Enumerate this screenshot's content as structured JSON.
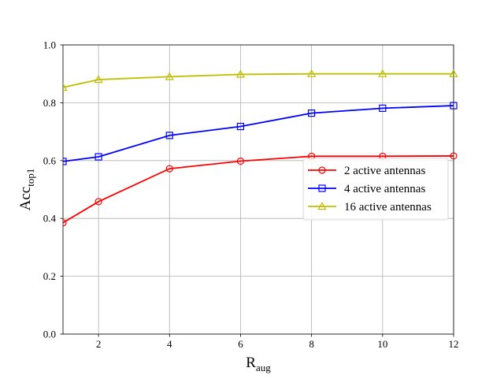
{
  "chart_data": {
    "type": "line",
    "title": "",
    "xlabel": "R",
    "xlabel_sub": "aug",
    "ylabel": "Acc",
    "ylabel_sub": "top1",
    "xlim": [
      1,
      12
    ],
    "ylim": [
      0,
      1.0
    ],
    "xticks": [
      2,
      4,
      6,
      8,
      10,
      12
    ],
    "xtick_labels": [
      "2",
      "4",
      "6",
      "8",
      "10",
      "12"
    ],
    "yticks": [
      0,
      0.2,
      0.4,
      0.6,
      0.8,
      1.0
    ],
    "ytick_labels": [
      "0.0",
      "0.2",
      "0.4",
      "0.6",
      "0.8",
      "1.0"
    ],
    "grid": true,
    "legend_position": "center-right",
    "x": [
      1,
      2,
      4,
      6,
      8,
      10,
      12
    ],
    "series": [
      {
        "name": "2 active antennas",
        "color": "#ff0000",
        "marker": "circle",
        "values": [
          0.385,
          0.458,
          0.572,
          0.598,
          0.615,
          0.615,
          0.616
        ]
      },
      {
        "name": "4 active antennas",
        "color": "#0000ff",
        "marker": "square",
        "values": [
          0.597,
          0.613,
          0.687,
          0.718,
          0.764,
          0.781,
          0.79
        ]
      },
      {
        "name": "16 active antennas",
        "color": "#bfbf00",
        "marker": "triangle",
        "values": [
          0.853,
          0.88,
          0.89,
          0.898,
          0.9,
          0.9,
          0.9
        ]
      }
    ]
  }
}
